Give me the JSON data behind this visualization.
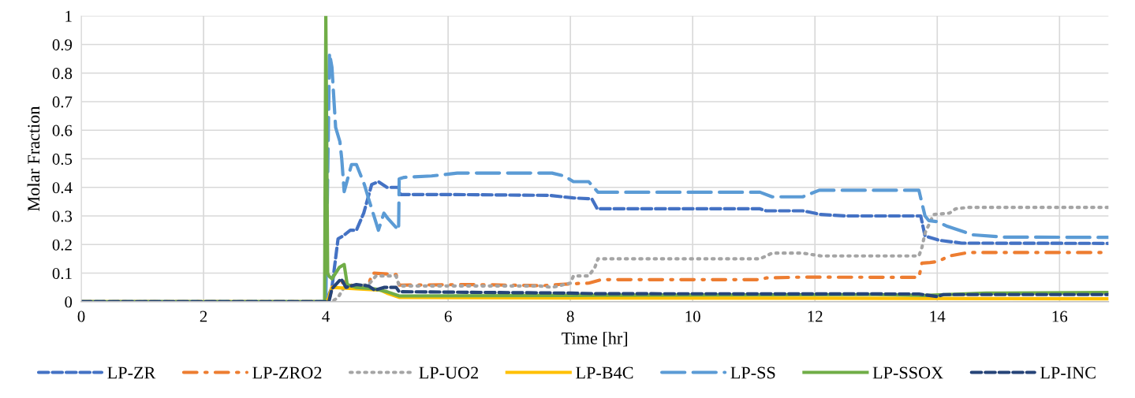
{
  "chart_data": {
    "type": "line",
    "xlabel": "Time [hr]",
    "ylabel": "Molar Fraction",
    "xlim": [
      0,
      16.8
    ],
    "xticks": [
      0,
      2,
      4,
      6,
      8,
      10,
      12,
      14,
      16
    ],
    "ylim": [
      0,
      1
    ],
    "yticks": [
      0,
      0.1,
      0.2,
      0.3,
      0.4,
      0.5,
      0.6,
      0.7,
      0.8,
      0.9,
      1
    ],
    "grid": true,
    "legend": "bottom",
    "marker": "none",
    "series": [
      {
        "name": "LP-ZR",
        "color": "#4472c4",
        "line_style": "dashed",
        "x": [
          0,
          4.0,
          4.1,
          4.2,
          4.28,
          4.4,
          4.5,
          4.62,
          4.75,
          4.86,
          5.0,
          5.19,
          5.22,
          6.0,
          7.66,
          8.05,
          8.35,
          8.44,
          11.1,
          11.2,
          11.8,
          12.1,
          12.5,
          13.73,
          13.8,
          14.03,
          14.4,
          16.8
        ],
        "values": [
          0,
          0,
          0.05,
          0.22,
          0.23,
          0.25,
          0.25,
          0.31,
          0.41,
          0.42,
          0.4,
          0.4,
          0.375,
          0.375,
          0.372,
          0.363,
          0.36,
          0.325,
          0.325,
          0.318,
          0.318,
          0.305,
          0.3,
          0.3,
          0.23,
          0.215,
          0.205,
          0.204
        ]
      },
      {
        "name": "LP-ZRO2",
        "color": "#ed7d31",
        "line_style": "dashdot",
        "x": [
          0,
          4.05,
          4.1,
          4.3,
          4.5,
          4.7,
          4.76,
          5.15,
          5.2,
          6.4,
          7.55,
          7.8,
          8.05,
          8.3,
          8.5,
          11.1,
          11.2,
          11.8,
          13.7,
          13.75,
          13.88,
          14.0,
          14.2,
          14.5,
          16.8
        ],
        "values": [
          0,
          0,
          0.05,
          0.07,
          0.05,
          0.06,
          0.1,
          0.095,
          0.058,
          0.06,
          0.056,
          0.06,
          0.063,
          0.065,
          0.077,
          0.077,
          0.083,
          0.086,
          0.085,
          0.135,
          0.137,
          0.14,
          0.16,
          0.172,
          0.172
        ]
      },
      {
        "name": "LP-UO2",
        "color": "#a5a5a5",
        "line_style": "dotted",
        "x": [
          0,
          4.1,
          4.2,
          4.3,
          4.7,
          4.82,
          5.15,
          5.2,
          7.5,
          7.7,
          8.0,
          8.05,
          8.3,
          8.4,
          8.45,
          11.1,
          11.3,
          11.8,
          12.1,
          13.7,
          13.75,
          13.8,
          13.94,
          14.2,
          14.3,
          14.5,
          16.8
        ],
        "values": [
          0,
          0,
          0.015,
          0.05,
          0.06,
          0.09,
          0.09,
          0.055,
          0.055,
          0.05,
          0.065,
          0.09,
          0.09,
          0.12,
          0.15,
          0.15,
          0.17,
          0.17,
          0.16,
          0.16,
          0.19,
          0.24,
          0.305,
          0.31,
          0.325,
          0.33,
          0.33
        ]
      },
      {
        "name": "LP-B4C",
        "color": "#ffc000",
        "line_style": "solid",
        "x": [
          0,
          4.02,
          4.1,
          4.5,
          4.9,
          5.0,
          5.2,
          8.0,
          12.0,
          16.8
        ],
        "values": [
          0,
          0,
          0.05,
          0.045,
          0.04,
          0.03,
          0.015,
          0.013,
          0.012,
          0.01
        ]
      },
      {
        "name": "LP-SS",
        "color": "#5b9bd5",
        "line_style": "longdash",
        "x": [
          0,
          4.0,
          4.06,
          4.1,
          4.16,
          4.23,
          4.26,
          4.3,
          4.42,
          4.5,
          4.63,
          4.7,
          4.86,
          4.95,
          5.02,
          5.19,
          5.2,
          5.28,
          5.73,
          6.15,
          7.7,
          7.9,
          8.05,
          8.3,
          8.45,
          11.1,
          11.3,
          11.8,
          12.07,
          13.7,
          13.8,
          13.86,
          14.0,
          14.15,
          14.58,
          15.1,
          16.8
        ],
        "values": [
          0,
          0,
          0.87,
          0.82,
          0.61,
          0.56,
          0.5,
          0.385,
          0.48,
          0.48,
          0.41,
          0.36,
          0.25,
          0.31,
          0.29,
          0.25,
          0.43,
          0.435,
          0.44,
          0.45,
          0.45,
          0.44,
          0.42,
          0.42,
          0.383,
          0.383,
          0.367,
          0.367,
          0.39,
          0.39,
          0.3,
          0.284,
          0.28,
          0.265,
          0.234,
          0.226,
          0.225
        ]
      },
      {
        "name": "LP-SSOX",
        "color": "#70ad47",
        "line_style": "solid",
        "x": [
          0,
          3.98,
          4.0,
          4.03,
          4.05,
          4.1,
          4.22,
          4.3,
          4.35,
          4.5,
          4.8,
          5.0,
          5.2,
          8.0,
          13.0,
          13.8,
          14.8,
          16.8
        ],
        "values": [
          0,
          0,
          1,
          0.1,
          0.09,
          0.08,
          0.12,
          0.13,
          0.06,
          0.05,
          0.045,
          0.035,
          0.02,
          0.022,
          0.025,
          0.022,
          0.03,
          0.032
        ]
      },
      {
        "name": "LP-INC",
        "color": "#264478",
        "line_style": "dashed",
        "x": [
          0,
          4.05,
          4.1,
          4.25,
          4.33,
          4.5,
          4.7,
          4.8,
          4.95,
          5.15,
          5.2,
          8.0,
          8.4,
          13.7,
          14.0,
          14.1,
          16.8
        ],
        "values": [
          0,
          0,
          0.045,
          0.08,
          0.05,
          0.06,
          0.055,
          0.04,
          0.05,
          0.05,
          0.035,
          0.03,
          0.028,
          0.027,
          0.018,
          0.025,
          0.025
        ]
      }
    ]
  }
}
